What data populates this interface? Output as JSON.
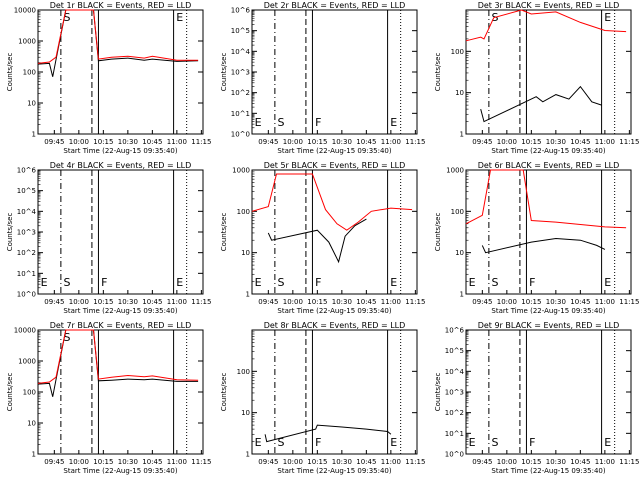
{
  "figure": {
    "legend_suffix": "BLACK = Events, RED = LLD",
    "x_label": "Start Time (22-Aug-15 09:35:40)",
    "y_label": "Counts/sec",
    "x_tick_labels": [
      "09:45",
      "10:00",
      "10:15",
      "10:30",
      "10:45",
      "11:00",
      "11:15"
    ],
    "colors": {
      "events": "#000000",
      "lld": "#ff0000"
    },
    "markers": {
      "E": "E",
      "S": "S",
      "F": "F"
    }
  },
  "chart_data": [
    {
      "type": "line",
      "panel": "1r",
      "title": "Det 1r BLACK = Events, RED = LLD",
      "y_scale": "log",
      "ylim": [
        1,
        10000
      ],
      "y_tick_labels": [
        "1",
        "10",
        "100",
        "1000",
        "10000"
      ],
      "markers_shown": [
        "S",
        "E"
      ],
      "series": [
        {
          "name": "Events",
          "x": [
            "09:35",
            "09:42",
            "09:44",
            "09:46",
            "09:52",
            "10:09",
            "10:12",
            "10:20",
            "10:30",
            "10:40",
            "10:45",
            "11:00",
            "11:13"
          ],
          "y": [
            180,
            190,
            70,
            250,
            10000,
            10000,
            230,
            260,
            280,
            240,
            260,
            220,
            230
          ]
        },
        {
          "name": "LLD",
          "x": [
            "09:35",
            "09:42",
            "09:46",
            "09:52",
            "10:09",
            "10:12",
            "10:20",
            "10:30",
            "10:40",
            "10:45",
            "11:00",
            "11:13"
          ],
          "y": [
            190,
            210,
            300,
            10000,
            10000,
            260,
            300,
            320,
            280,
            320,
            240,
            240
          ]
        }
      ]
    },
    {
      "type": "line",
      "panel": "2r",
      "title": "Det 2r BLACK = Events, RED = LLD",
      "y_scale": "log",
      "ylim": [
        1,
        1000000
      ],
      "y_tick_labels": [
        "10^0",
        "10^1",
        "10^2",
        "10^3",
        "10^4",
        "10^5",
        "10^6"
      ],
      "markers_shown": [
        "E",
        "S",
        "F",
        "E"
      ],
      "series": []
    },
    {
      "type": "line",
      "panel": "3r",
      "title": "Det 3r BLACK = Events, RED = LLD",
      "y_scale": "log",
      "ylim": [
        1,
        1000
      ],
      "y_tick_labels": [
        "1",
        "10",
        "100"
      ],
      "markers_shown": [
        "S",
        "E"
      ],
      "series": [
        {
          "name": "Events",
          "x": [
            "09:44",
            "09:46",
            "10:18",
            "10:22",
            "10:30",
            "10:38",
            "10:45",
            "10:52",
            "10:58"
          ],
          "y": [
            4,
            2,
            8,
            6,
            9,
            7,
            14,
            6,
            5
          ]
        },
        {
          "name": "LLD",
          "x": [
            "09:35",
            "09:44",
            "09:46",
            "09:52",
            "10:09",
            "10:15",
            "10:30",
            "10:45",
            "11:00",
            "11:13"
          ],
          "y": [
            180,
            220,
            200,
            650,
            1000,
            800,
            900,
            500,
            320,
            300
          ]
        }
      ]
    },
    {
      "type": "line",
      "panel": "4r",
      "title": "Det 4r BLACK = Events, RED = LLD",
      "y_scale": "log",
      "ylim": [
        1,
        1000000
      ],
      "y_tick_labels": [
        "10^0",
        "10^1",
        "10^2",
        "10^3",
        "10^4",
        "10^5",
        "10^6"
      ],
      "markers_shown": [
        "E",
        "S",
        "F",
        "E"
      ],
      "series": []
    },
    {
      "type": "line",
      "panel": "5r",
      "title": "Det 5r BLACK = Events, RED = LLD",
      "y_scale": "log",
      "ylim": [
        1,
        1000
      ],
      "y_tick_labels": [
        "1",
        "10",
        "100",
        "1000"
      ],
      "markers_shown": [
        "E",
        "S",
        "F",
        "E"
      ],
      "series": [
        {
          "name": "Events",
          "x": [
            "09:45",
            "09:47",
            "10:15",
            "10:22",
            "10:28",
            "10:32",
            "10:38",
            "10:45"
          ],
          "y": [
            30,
            20,
            35,
            18,
            6,
            25,
            45,
            65
          ]
        },
        {
          "name": "LLD",
          "x": [
            "09:35",
            "09:45",
            "09:50",
            "10:12",
            "10:20",
            "10:27",
            "10:33",
            "10:40",
            "10:48",
            "11:00",
            "11:13"
          ],
          "y": [
            100,
            130,
            800,
            800,
            110,
            50,
            35,
            55,
            100,
            120,
            110
          ]
        }
      ]
    },
    {
      "type": "line",
      "panel": "6r",
      "title": "Det 6r BLACK = Events, RED = LLD",
      "y_scale": "log",
      "ylim": [
        1,
        1000
      ],
      "y_tick_labels": [
        "1",
        "10",
        "100",
        "1000"
      ],
      "markers_shown": [
        "E",
        "S",
        "F",
        "E"
      ],
      "series": [
        {
          "name": "Events",
          "x": [
            "09:45",
            "09:47",
            "10:15",
            "10:30",
            "10:45",
            "10:55",
            "11:00"
          ],
          "y": [
            15,
            10,
            18,
            22,
            20,
            15,
            12
          ]
        },
        {
          "name": "LLD",
          "x": [
            "09:35",
            "09:45",
            "09:50",
            "10:10",
            "10:15",
            "10:30",
            "10:45",
            "11:00",
            "11:13"
          ],
          "y": [
            50,
            80,
            1000,
            1000,
            60,
            55,
            48,
            42,
            40
          ]
        }
      ]
    },
    {
      "type": "line",
      "panel": "7r",
      "title": "Det 7r BLACK = Events, RED = LLD",
      "y_scale": "log",
      "ylim": [
        1,
        10000
      ],
      "y_tick_labels": [
        "1",
        "10",
        "100",
        "1000",
        "10000"
      ],
      "markers_shown": [
        "S"
      ],
      "series": [
        {
          "name": "Events",
          "x": [
            "09:35",
            "09:42",
            "09:44",
            "09:46",
            "09:52",
            "10:09",
            "10:12",
            "10:20",
            "10:30",
            "10:40",
            "10:45",
            "11:00",
            "11:13"
          ],
          "y": [
            180,
            190,
            70,
            250,
            10000,
            10000,
            230,
            240,
            260,
            250,
            260,
            220,
            220
          ]
        },
        {
          "name": "LLD",
          "x": [
            "09:35",
            "09:42",
            "09:46",
            "09:52",
            "10:09",
            "10:12",
            "10:20",
            "10:30",
            "10:40",
            "10:45",
            "11:00",
            "11:13"
          ],
          "y": [
            190,
            210,
            300,
            10000,
            10000,
            260,
            300,
            340,
            310,
            330,
            250,
            240
          ]
        }
      ]
    },
    {
      "type": "line",
      "panel": "8r",
      "title": "Det 8r BLACK = Events, RED = LLD",
      "y_scale": "log",
      "ylim": [
        1,
        1000
      ],
      "y_tick_labels": [
        "1",
        "10",
        "100"
      ],
      "markers_shown": [
        "E",
        "S",
        "F",
        "E"
      ],
      "series": [
        {
          "name": "Events",
          "x": [
            "09:43",
            "09:44",
            "10:14",
            "10:15",
            "10:30",
            "10:45",
            "10:58",
            "11:00"
          ],
          "y": [
            3,
            2,
            4,
            5,
            4.5,
            4,
            3.5,
            3
          ]
        }
      ]
    },
    {
      "type": "line",
      "panel": "9r",
      "title": "Det 9r BLACK = Events, RED = LLD",
      "y_scale": "log",
      "ylim": [
        1,
        1000000
      ],
      "y_tick_labels": [
        "10^0",
        "10^1",
        "10^2",
        "10^3",
        "10^4",
        "10^5",
        "10^6"
      ],
      "markers_shown": [
        "E",
        "S",
        "F",
        "E"
      ],
      "series": []
    }
  ]
}
